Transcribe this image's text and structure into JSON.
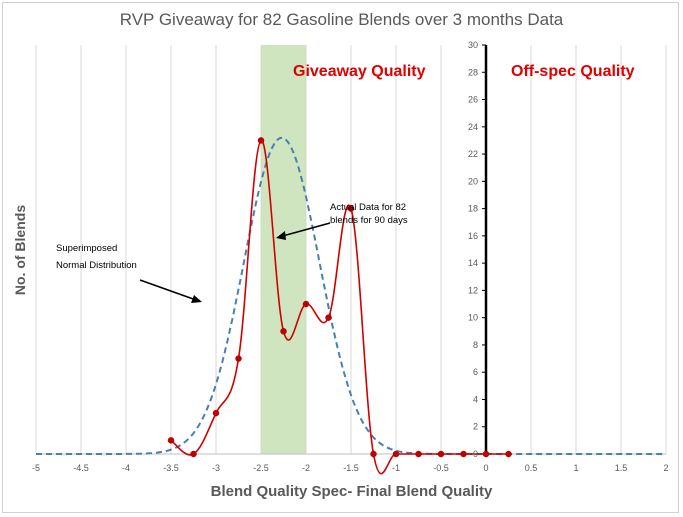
{
  "chart_data": {
    "type": "line",
    "title": "RVP Giveaway for 82 Gasoline Blends over 3 months Data",
    "xlabel": "Blend Quality Spec- Final  Blend Quality",
    "ylabel": "No. of Blends",
    "xlim": [
      -5,
      2
    ],
    "ylim": [
      0,
      30
    ],
    "x_ticks": [
      -5,
      -4.5,
      -4,
      -3.5,
      -3,
      -2.5,
      -2,
      -1.5,
      -1,
      -0.5,
      0,
      0.5,
      1,
      1.5,
      2
    ],
    "y_ticks": [
      0,
      2,
      4,
      6,
      8,
      10,
      12,
      14,
      16,
      18,
      20,
      22,
      24,
      26,
      28,
      30
    ],
    "x_tick_labels": [
      "-5",
      "-4.5",
      "-4",
      "-3.5",
      "-3",
      "-2.5",
      "-2",
      "-1.5",
      "-1",
      "-0.5",
      "0",
      "0.5",
      "1",
      "1.5",
      "2"
    ],
    "y_tick_labels": [
      "0",
      "2",
      "4",
      "6",
      "8",
      "10",
      "12",
      "14",
      "16",
      "18",
      "20",
      "22",
      "24",
      "26",
      "28",
      "30"
    ],
    "grid": "vertical",
    "shaded_band": {
      "x_from": -2.5,
      "x_to": -2.0,
      "color": "#c6e0b4"
    },
    "spec_line_x": 0,
    "series": [
      {
        "style": "smoothed line with markers",
        "color": "#d00000",
        "x": [
          -3.5,
          -3.25,
          -3.0,
          -2.75,
          -2.5,
          -2.25,
          -2.0,
          -1.75,
          -1.5,
          -1.25,
          -1.0,
          -0.75,
          -0.5,
          -0.25,
          0.0,
          0.25
        ],
        "values": [
          1,
          0,
          3,
          7,
          23,
          9,
          11,
          10,
          18,
          0,
          0,
          0,
          0,
          0,
          0,
          0
        ]
      },
      {
        "style": "dashed",
        "color": "#4a7fb5",
        "distribution": {
          "type": "normal",
          "mean": -2.27,
          "sd": 0.42,
          "peak": 23.2
        },
        "x_range": [
          -5,
          2
        ]
      }
    ],
    "annotations": {
      "giveaway": "Giveaway Quality",
      "offspec": "Off-spec Quality",
      "actual_line1": "Actual Data for 82",
      "actual_line2": "blends for 90 days",
      "normal_line1": "Superimposed",
      "normal_line2": "Normal Distribution"
    },
    "colors": {
      "band": "#c6e0b4",
      "actual": "#d00000",
      "normal": "#4a7fb5",
      "annotation_red": "#e00000"
    }
  }
}
